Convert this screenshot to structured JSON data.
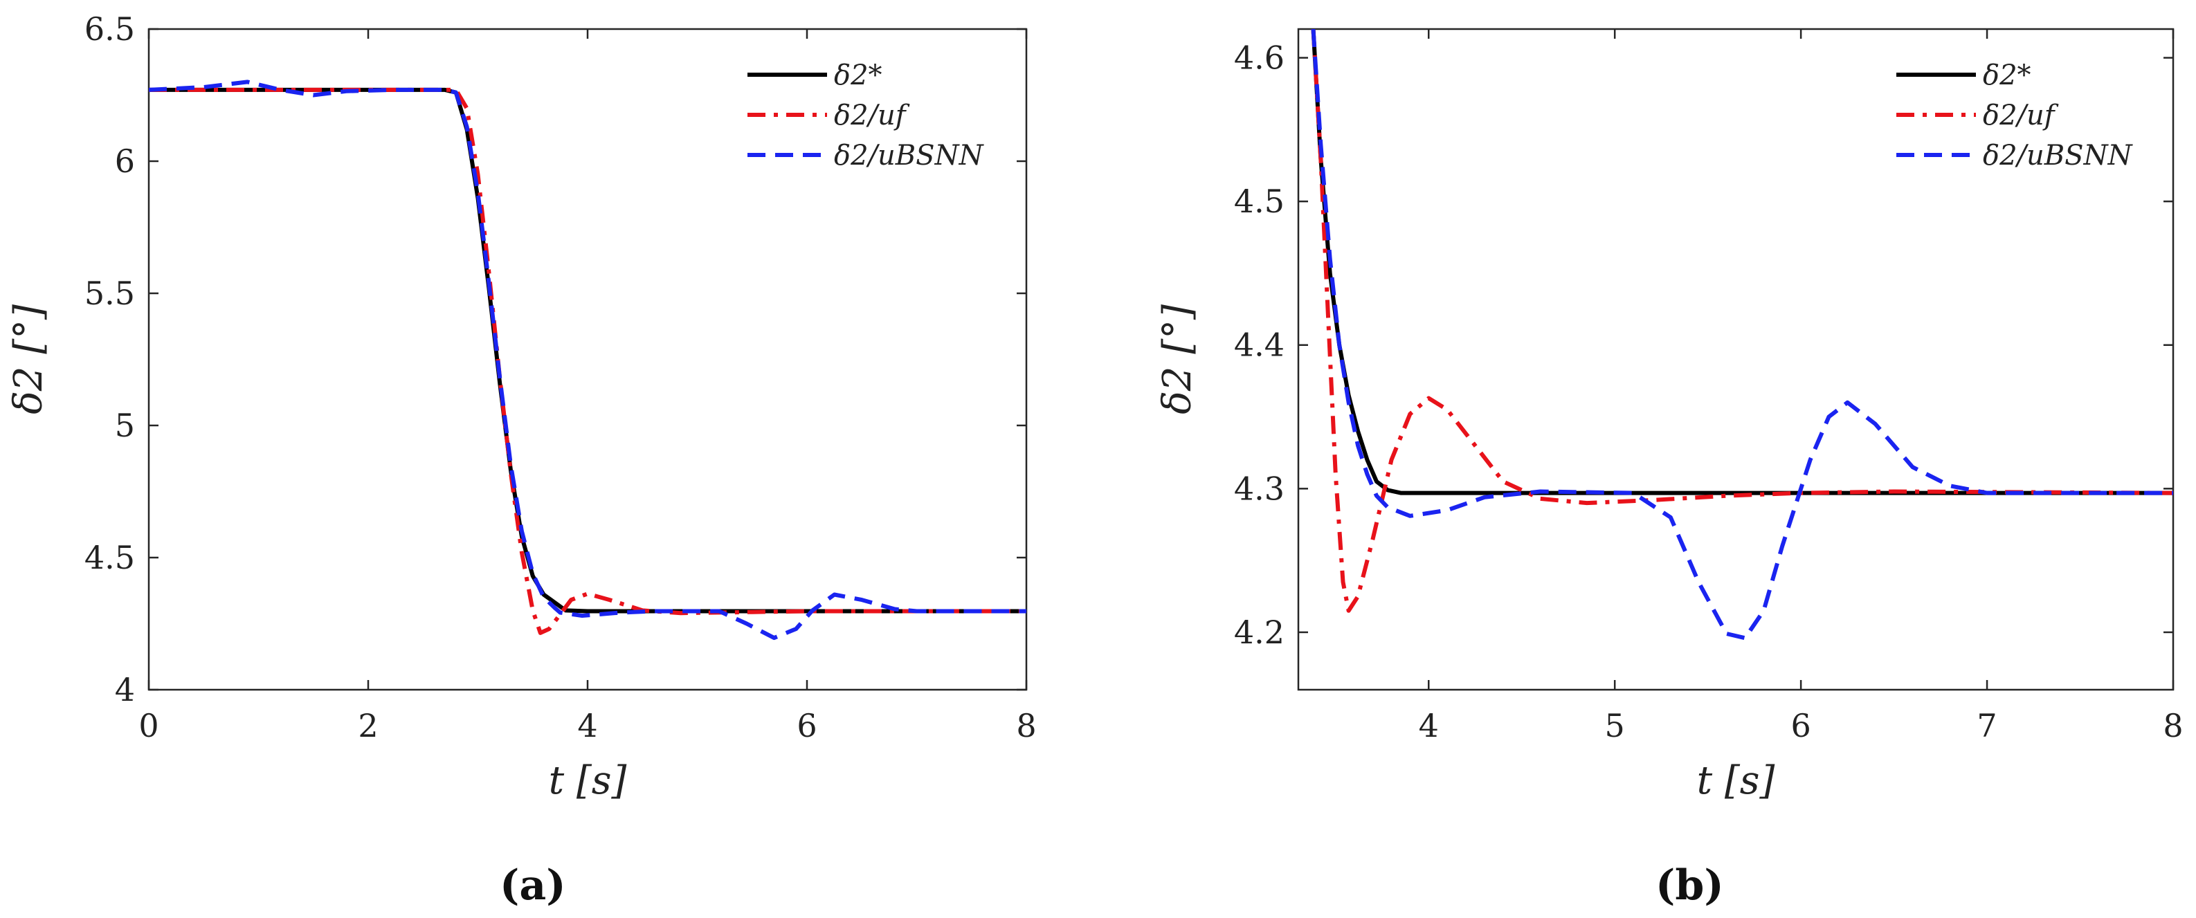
{
  "chart_data": [
    {
      "type": "line",
      "panel_label": "(a)",
      "xlabel": "t [s]",
      "ylabel": "δ2 [°]",
      "xlim": [
        0,
        8
      ],
      "ylim": [
        4,
        6.5
      ],
      "xticks": [
        "0",
        "2",
        "4",
        "6",
        "8"
      ],
      "yticks": [
        "4",
        "4.5",
        "5",
        "5.5",
        "6",
        "6.5"
      ],
      "grid": false,
      "legend_position": "top-right",
      "series": [
        {
          "name": "δ2*",
          "color": "#000000",
          "style": "solid",
          "x": [
            0,
            2.7,
            2.8,
            2.9,
            3.0,
            3.1,
            3.2,
            3.3,
            3.4,
            3.5,
            3.6,
            3.7,
            3.8,
            4.0,
            5.0,
            8.0
          ],
          "y": [
            6.27,
            6.27,
            6.26,
            6.12,
            5.86,
            5.52,
            5.16,
            4.83,
            4.58,
            4.43,
            4.36,
            4.33,
            4.3,
            4.297,
            4.297,
            4.297
          ]
        },
        {
          "name": "δ2/uf",
          "color": "#e8121a",
          "style": "dashdot",
          "x": [
            0,
            2.7,
            2.8,
            2.9,
            3.0,
            3.1,
            3.2,
            3.3,
            3.4,
            3.5,
            3.57,
            3.65,
            3.75,
            3.85,
            4.0,
            4.2,
            4.5,
            4.85,
            5.5,
            6.0,
            8.0
          ],
          "y": [
            6.27,
            6.27,
            6.27,
            6.2,
            5.95,
            5.58,
            5.18,
            4.82,
            4.52,
            4.3,
            4.215,
            4.23,
            4.285,
            4.34,
            4.363,
            4.34,
            4.3,
            4.29,
            4.294,
            4.297,
            4.297
          ]
        },
        {
          "name": "δ2/uBSNN",
          "color": "#1a24f0",
          "style": "dashed",
          "x": [
            0,
            0.5,
            0.9,
            1.2,
            1.5,
            1.8,
            2.2,
            2.7,
            2.8,
            2.9,
            3.0,
            3.1,
            3.2,
            3.3,
            3.4,
            3.5,
            3.6,
            3.7,
            3.75,
            3.95,
            4.3,
            4.6,
            5.2,
            5.45,
            5.7,
            5.9,
            6.05,
            6.25,
            6.5,
            6.8,
            7.0,
            8.0
          ],
          "y": [
            6.27,
            6.28,
            6.3,
            6.27,
            6.25,
            6.265,
            6.27,
            6.27,
            6.26,
            6.13,
            5.88,
            5.54,
            5.18,
            4.85,
            4.6,
            4.44,
            4.35,
            4.31,
            4.292,
            4.28,
            4.292,
            4.297,
            4.297,
            4.25,
            4.196,
            4.23,
            4.3,
            4.36,
            4.34,
            4.305,
            4.297,
            4.297
          ]
        }
      ]
    },
    {
      "type": "line",
      "panel_label": "(b)",
      "xlabel": "t [s]",
      "ylabel": "δ2 [°]",
      "xlim": [
        3.3,
        8
      ],
      "ylim": [
        4.16,
        4.62
      ],
      "xticks": [
        "4",
        "5",
        "6",
        "7",
        "8"
      ],
      "yticks": [
        "4.2",
        "4.3",
        "4.4",
        "4.5",
        "4.6"
      ],
      "grid": false,
      "legend_position": "top-right",
      "series": [
        {
          "name": "δ2*",
          "color": "#000000",
          "style": "solid",
          "x": [
            3.38,
            3.42,
            3.47,
            3.52,
            3.57,
            3.62,
            3.67,
            3.72,
            3.78,
            3.85,
            4.0,
            5.0,
            8.0
          ],
          "y": [
            4.62,
            4.53,
            4.45,
            4.4,
            4.365,
            4.34,
            4.32,
            4.305,
            4.299,
            4.297,
            4.297,
            4.297,
            4.297
          ]
        },
        {
          "name": "δ2/uf",
          "color": "#e8121a",
          "style": "dashdot",
          "x": [
            3.38,
            3.42,
            3.46,
            3.5,
            3.54,
            3.57,
            3.62,
            3.7,
            3.8,
            3.9,
            4.0,
            4.1,
            4.25,
            4.4,
            4.6,
            4.85,
            5.2,
            5.6,
            6.0,
            6.5,
            8.0
          ],
          "y": [
            4.62,
            4.53,
            4.42,
            4.31,
            4.235,
            4.215,
            4.225,
            4.265,
            4.32,
            4.352,
            4.363,
            4.355,
            4.33,
            4.305,
            4.293,
            4.29,
            4.292,
            4.295,
            4.297,
            4.298,
            4.297
          ]
        },
        {
          "name": "δ2/uBSNN",
          "color": "#1a24f0",
          "style": "dashed",
          "x": [
            3.38,
            3.42,
            3.47,
            3.52,
            3.57,
            3.62,
            3.67,
            3.72,
            3.78,
            3.9,
            4.1,
            4.3,
            4.6,
            5.1,
            5.3,
            5.45,
            5.6,
            5.7,
            5.8,
            5.9,
            6.05,
            6.15,
            6.25,
            6.4,
            6.6,
            6.8,
            7.0,
            7.5,
            8.0
          ],
          "y": [
            4.62,
            4.54,
            4.46,
            4.4,
            4.36,
            4.33,
            4.31,
            4.295,
            4.287,
            4.281,
            4.285,
            4.294,
            4.298,
            4.297,
            4.28,
            4.235,
            4.199,
            4.196,
            4.215,
            4.26,
            4.32,
            4.35,
            4.36,
            4.345,
            4.315,
            4.302,
            4.297,
            4.297,
            4.297
          ]
        }
      ]
    }
  ]
}
